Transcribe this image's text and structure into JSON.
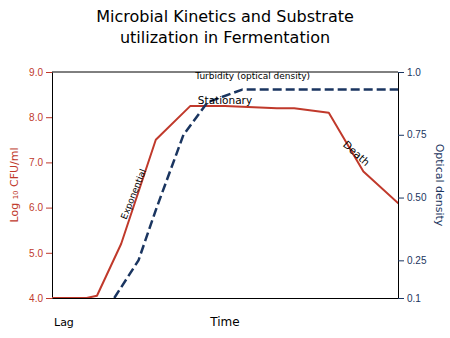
{
  "chart_data": {
    "type": "line",
    "title": [
      "Microbial Kinetics and Substrate",
      "utilization in Fermentation"
    ],
    "xlabel": "Time",
    "ylabel": "Log ₁₀ CFU/ml",
    "y2label": "Optical density",
    "xlim": [
      0,
      10
    ],
    "ylim": [
      4.0,
      9.0
    ],
    "yticks": [
      {
        "value": 4.0,
        "label": "4.0"
      },
      {
        "value": 5.0,
        "label": "5.0"
      },
      {
        "value": 6.0,
        "label": "6.0"
      },
      {
        "value": 7.0,
        "label": "7.0"
      },
      {
        "value": 8.0,
        "label": "8.0"
      },
      {
        "value": 9.0,
        "label": "9.0"
      }
    ],
    "y2lim": [
      0.1,
      1.0
    ],
    "y2ticks": [
      0.1,
      0.25,
      {
        "value": 0.5,
        "label": "0.50"
      },
      0.75,
      {
        "value": 1.0,
        "label": "1.0"
      }
    ],
    "tick_labels": "y",
    "grid": false,
    "series": [
      {
        "color": "#c0392b",
        "x": [
          0.0,
          1.0,
          1.3,
          2.0,
          3.0,
          4.0,
          5.0,
          6.5,
          7.0,
          8.0,
          9.0,
          10.0
        ],
        "values": [
          4.0,
          4.0,
          4.05,
          5.2,
          7.5,
          8.25,
          8.25,
          8.2,
          8.2,
          8.1,
          6.8,
          6.1
        ]
      },
      {
        "color": "#1a3560",
        "axis": "y2",
        "line_style": "dashed",
        "x": [
          1.8,
          2.5,
          3.0,
          3.8,
          4.5,
          5.5,
          6.5,
          7.5,
          8.5,
          9.5,
          10.0
        ],
        "values": [
          0.1,
          0.25,
          0.45,
          0.75,
          0.88,
          0.93,
          0.93,
          0.93,
          0.93,
          0.93,
          0.93
        ]
      }
    ],
    "annotations": [
      "Lag",
      "Turbidity (optical density)",
      "Stationary",
      "Exponential",
      "Death"
    ]
  }
}
